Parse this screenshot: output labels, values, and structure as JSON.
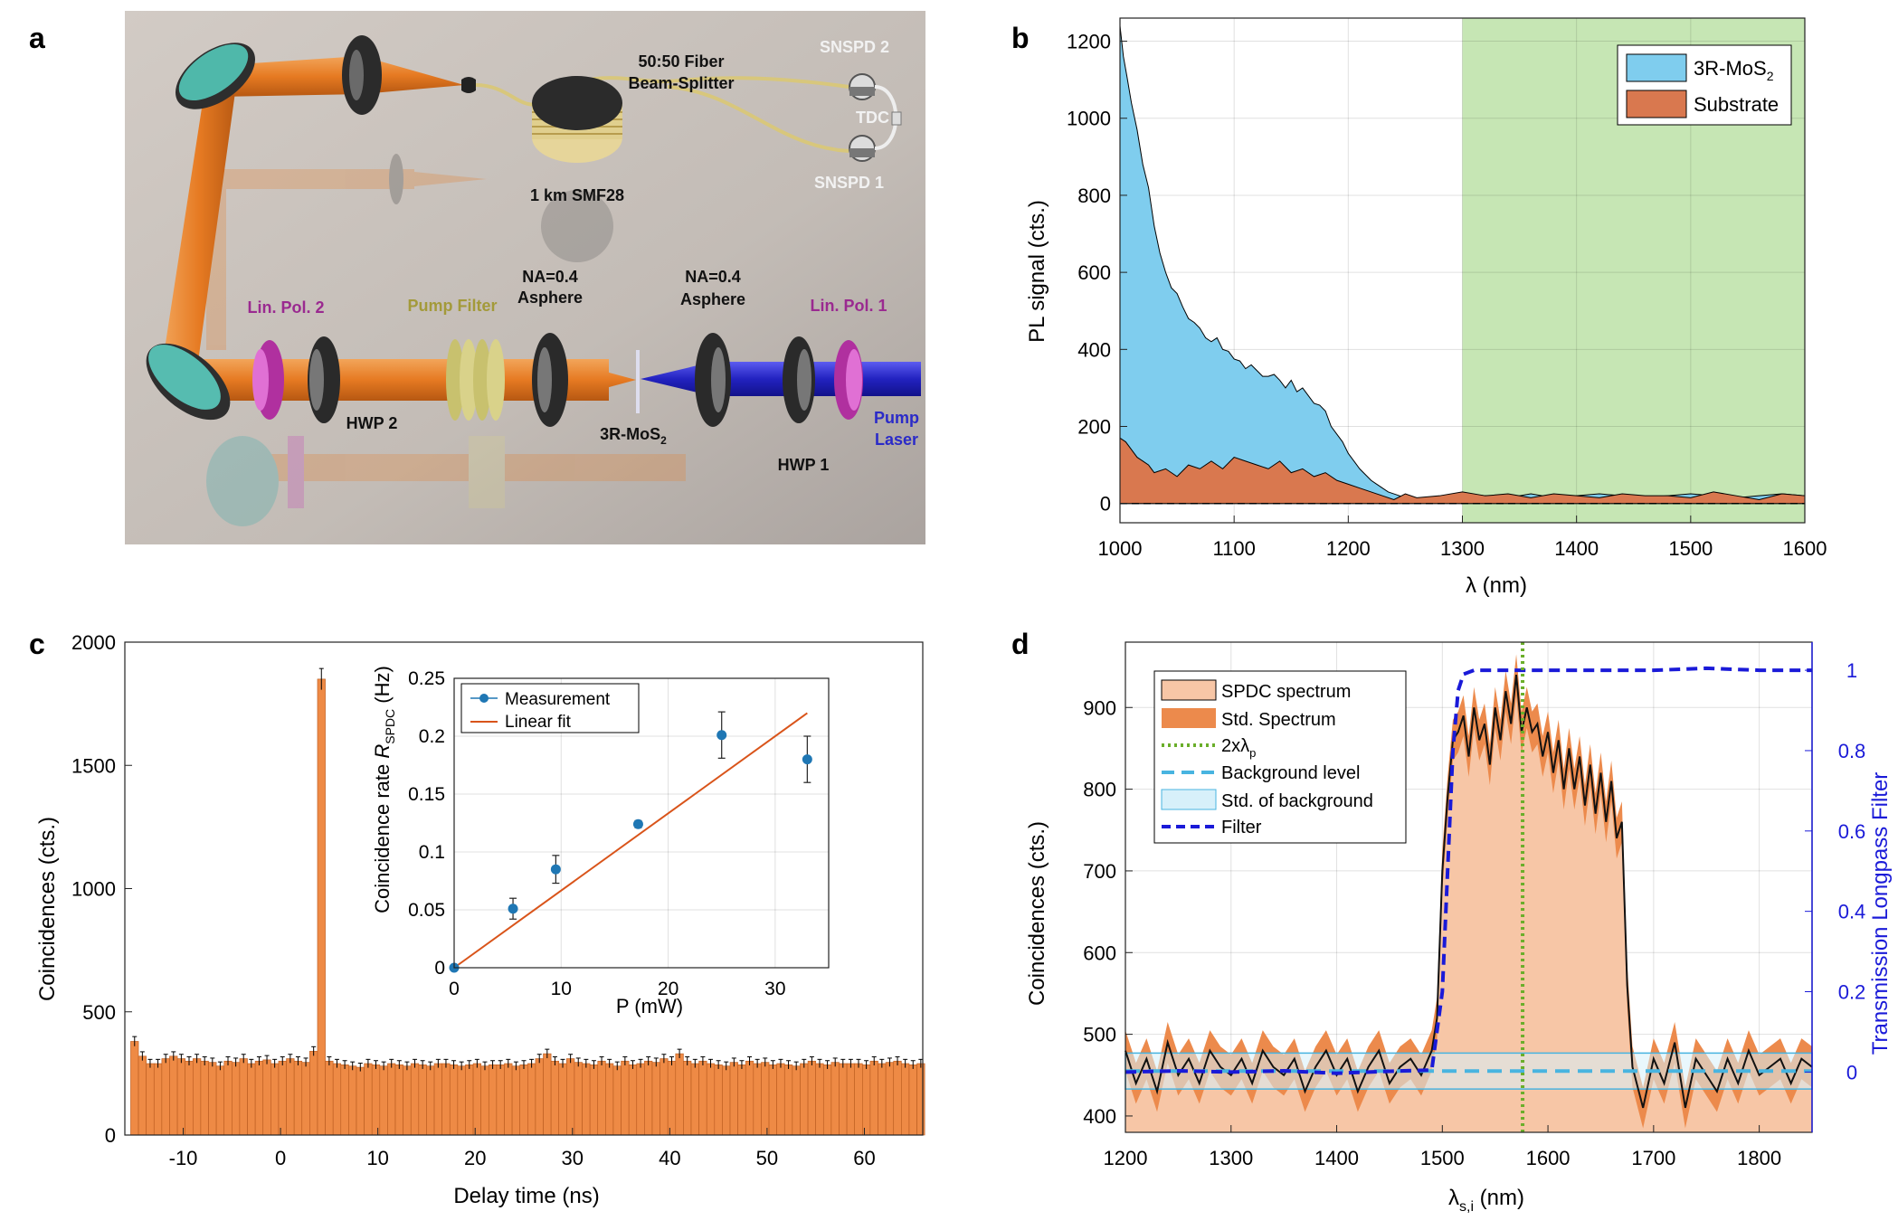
{
  "panel_labels": {
    "a": "a",
    "b": "b",
    "c": "c",
    "d": "d"
  },
  "setup": {
    "labels": {
      "snspd2": "SNSPD 2",
      "fiber_bs_1": "50:50 Fiber",
      "fiber_bs_2": "Beam-Splitter",
      "tdc": "TDC",
      "snspd1": "SNSPD 1",
      "smf": "1 km SMF28",
      "na_left_1": "NA=0.4",
      "na_left_2": "Asphere",
      "na_right_1": "NA=0.4",
      "na_right_2": "Asphere",
      "linpol2": "Lin. Pol. 2",
      "pumpfilter": "Pump Filter",
      "linpol1": "Lin. Pol. 1",
      "hwp2": "HWP 2",
      "sample": "3R-MoS",
      "sample_sub": "2",
      "hwp1": "HWP 1",
      "pump_laser_1": "Pump",
      "pump_laser_2": "Laser"
    },
    "colors": {
      "beam_orange": "#e87b2a",
      "beam_blue": "#2c2cc8",
      "lin_pol": "#c63fb8",
      "pump_filter": "#d9d28a",
      "fiber": "#d8c77c",
      "bg": "#c9c1bb"
    }
  },
  "chart_data": [
    {
      "id": "b",
      "type": "area",
      "xlabel": "λ (nm)",
      "ylabel": "PL signal (cts.)",
      "xlim": [
        1000,
        1600
      ],
      "ylim": [
        -50,
        1260
      ],
      "xticks": [
        1000,
        1100,
        1200,
        1300,
        1400,
        1500,
        1600
      ],
      "yticks": [
        0,
        200,
        400,
        600,
        800,
        1000,
        1200
      ],
      "shaded_region": [
        1300,
        1600
      ],
      "shaded_color": "#c6e6b4",
      "zero_line": true,
      "legend": [
        {
          "label": "3R-MoS",
          "sub": "2",
          "color": "#7fcdee"
        },
        {
          "label": "Substrate",
          "color": "#d9784f"
        }
      ],
      "series": [
        {
          "name": "3R-MoS2",
          "color": "#7fcdee",
          "x": [
            1000,
            1003,
            1006,
            1010,
            1015,
            1020,
            1025,
            1030,
            1035,
            1040,
            1045,
            1050,
            1055,
            1060,
            1065,
            1070,
            1075,
            1080,
            1085,
            1090,
            1095,
            1100,
            1105,
            1110,
            1115,
            1120,
            1125,
            1130,
            1135,
            1140,
            1145,
            1150,
            1155,
            1160,
            1165,
            1170,
            1175,
            1180,
            1185,
            1190,
            1195,
            1200,
            1205,
            1210,
            1215,
            1220,
            1225,
            1230,
            1235,
            1240,
            1245,
            1250,
            1260,
            1270,
            1280,
            1290,
            1300,
            1320,
            1340,
            1360,
            1380,
            1400,
            1420,
            1440,
            1460,
            1480,
            1500,
            1520,
            1540,
            1560,
            1580,
            1600
          ],
          "y": [
            1240,
            1160,
            1110,
            1040,
            970,
            880,
            820,
            720,
            650,
            600,
            560,
            545,
            510,
            480,
            470,
            455,
            430,
            420,
            430,
            400,
            395,
            375,
            370,
            350,
            360,
            345,
            330,
            330,
            335,
            320,
            300,
            320,
            290,
            300,
            280,
            260,
            255,
            240,
            200,
            180,
            160,
            130,
            110,
            90,
            75,
            60,
            50,
            40,
            30,
            25,
            20,
            15,
            10,
            15,
            10,
            20,
            25,
            20,
            15,
            25,
            15,
            20,
            25,
            20,
            15,
            20,
            25,
            20,
            15,
            20,
            25,
            20
          ]
        },
        {
          "name": "Substrate",
          "color": "#d9784f",
          "x": [
            1000,
            1005,
            1010,
            1015,
            1020,
            1025,
            1030,
            1040,
            1050,
            1060,
            1070,
            1080,
            1090,
            1100,
            1110,
            1120,
            1130,
            1140,
            1150,
            1160,
            1170,
            1180,
            1190,
            1200,
            1210,
            1220,
            1230,
            1240,
            1250,
            1260,
            1280,
            1300,
            1320,
            1340,
            1360,
            1380,
            1400,
            1420,
            1440,
            1460,
            1480,
            1500,
            1520,
            1540,
            1560,
            1580,
            1600
          ],
          "y": [
            170,
            160,
            140,
            120,
            110,
            100,
            80,
            90,
            70,
            100,
            90,
            110,
            90,
            120,
            110,
            100,
            90,
            110,
            80,
            90,
            70,
            80,
            60,
            50,
            40,
            30,
            20,
            10,
            25,
            15,
            20,
            30,
            20,
            25,
            15,
            25,
            20,
            15,
            25,
            20,
            20,
            15,
            30,
            20,
            10,
            25,
            20
          ]
        }
      ]
    },
    {
      "id": "c",
      "type": "bar",
      "xlabel": "Delay time (ns)",
      "ylabel": "Coincidences (cts.)",
      "xlim": [
        -16,
        66
      ],
      "ylim": [
        0,
        2000
      ],
      "xticks": [
        -10,
        0,
        10,
        20,
        30,
        40,
        50,
        60
      ],
      "yticks": [
        0,
        500,
        1000,
        1500,
        2000
      ],
      "bar_color": "#ee8a45",
      "bin_start": -15,
      "bin_width": 0.8,
      "values": [
        380,
        320,
        290,
        290,
        310,
        320,
        310,
        300,
        310,
        300,
        295,
        280,
        300,
        295,
        310,
        290,
        300,
        305,
        290,
        300,
        310,
        300,
        295,
        340,
        1850,
        300,
        290,
        285,
        280,
        275,
        290,
        285,
        280,
        290,
        285,
        280,
        290,
        285,
        280,
        290,
        290,
        285,
        280,
        285,
        290,
        280,
        285,
        285,
        290,
        280,
        285,
        290,
        310,
        330,
        300,
        290,
        310,
        295,
        290,
        285,
        300,
        290,
        280,
        300,
        285,
        290,
        300,
        295,
        310,
        300,
        330,
        300,
        290,
        300,
        290,
        285,
        280,
        295,
        285,
        300,
        290,
        295,
        285,
        290,
        285,
        280,
        290,
        300,
        290,
        285,
        295,
        290,
        290,
        290,
        285,
        300,
        290,
        295,
        300,
        290,
        285,
        290
      ],
      "inset": {
        "type": "scatter",
        "xlabel": "P (mW)",
        "ylabel_1": "Coincidence rate ",
        "ylabel_2": "R",
        "ylabel_sub": "SPDC",
        "ylabel_3": " (Hz)",
        "xlim": [
          0,
          35
        ],
        "ylim": [
          0,
          0.25
        ],
        "xticks": [
          0,
          10,
          20,
          30
        ],
        "yticks": [
          0,
          0.05,
          0.1,
          0.15,
          0.2,
          0.25
        ],
        "ytick_labels": [
          "0",
          "0.05",
          "0.1",
          "0.15",
          "0.2",
          "0.25"
        ],
        "legend": [
          {
            "label": "Measurement",
            "color": "#1f77b4"
          },
          {
            "label": "Linear fit",
            "color": "#d9541a"
          }
        ],
        "points": [
          {
            "x": 0,
            "y": 0,
            "err": 0.002
          },
          {
            "x": 5.5,
            "y": 0.051,
            "err": 0.009
          },
          {
            "x": 9.5,
            "y": 0.085,
            "err": 0.012
          },
          {
            "x": 17.2,
            "y": 0.124,
            "err": 0.003
          },
          {
            "x": 25,
            "y": 0.201,
            "err": 0.02
          },
          {
            "x": 33,
            "y": 0.18,
            "err": 0.02
          }
        ],
        "fit": {
          "x": [
            0,
            33
          ],
          "y": [
            0,
            0.22
          ]
        }
      }
    },
    {
      "id": "d",
      "type": "line",
      "xlabel": "λ",
      "xlabel_sub": "s,i",
      "xlabel_unit": " (nm)",
      "ylabel": "Coincidences (cts.)",
      "ylabel_right": "Transmission Longpass Filter",
      "xlim": [
        1200,
        1850
      ],
      "ylim": [
        380,
        980
      ],
      "ylim_right": [
        -0.15,
        1.07
      ],
      "xticks": [
        1200,
        1300,
        1400,
        1500,
        1600,
        1700,
        1800
      ],
      "yticks": [
        400,
        500,
        600,
        700,
        800,
        900
      ],
      "yticks_right": [
        0,
        0.2,
        0.4,
        0.6,
        0.8,
        1
      ],
      "pump_double": 1576,
      "background_level": 455,
      "background_std": 22,
      "legend": [
        {
          "label": "SPDC spectrum",
          "kind": "patch",
          "color": "#f7c6a6"
        },
        {
          "label": "Std. Spectrum",
          "kind": "patch",
          "color": "#ec8a4c"
        },
        {
          "label": "2xλ",
          "sub": "p",
          "kind": "dotted",
          "color": "#6aae2a"
        },
        {
          "label": "Background level",
          "kind": "dashed",
          "color": "#48b4e0"
        },
        {
          "label": "Std. of background",
          "kind": "patch",
          "color": "#d7f0fa"
        },
        {
          "label": "Filter",
          "kind": "dashed",
          "color": "#1a1ad8"
        }
      ],
      "spectrum": {
        "x": [
          1200,
          1210,
          1220,
          1230,
          1240,
          1250,
          1260,
          1270,
          1280,
          1290,
          1300,
          1310,
          1320,
          1330,
          1340,
          1350,
          1360,
          1370,
          1380,
          1390,
          1400,
          1410,
          1420,
          1430,
          1440,
          1450,
          1460,
          1470,
          1480,
          1490,
          1495,
          1500,
          1505,
          1510,
          1515,
          1520,
          1525,
          1530,
          1535,
          1540,
          1545,
          1550,
          1555,
          1560,
          1565,
          1570,
          1575,
          1580,
          1585,
          1590,
          1595,
          1600,
          1605,
          1610,
          1615,
          1620,
          1625,
          1630,
          1635,
          1640,
          1645,
          1650,
          1655,
          1660,
          1665,
          1670,
          1675,
          1680,
          1690,
          1700,
          1710,
          1720,
          1730,
          1740,
          1750,
          1760,
          1770,
          1780,
          1790,
          1800,
          1810,
          1820,
          1830,
          1840,
          1850
        ],
        "y": [
          480,
          440,
          470,
          430,
          490,
          450,
          470,
          440,
          480,
          460,
          450,
          470,
          440,
          480,
          460,
          450,
          470,
          430,
          460,
          480,
          450,
          470,
          430,
          460,
          480,
          440,
          460,
          470,
          450,
          480,
          520,
          700,
          790,
          860,
          870,
          890,
          840,
          900,
          860,
          880,
          830,
          900,
          860,
          920,
          880,
          940,
          870,
          900,
          870,
          880,
          840,
          870,
          820,
          860,
          800,
          850,
          800,
          840,
          780,
          830,
          770,
          820,
          760,
          810,
          740,
          760,
          560,
          460,
          410,
          470,
          440,
          490,
          410,
          470,
          450,
          430,
          470,
          440,
          480,
          450,
          460,
          470,
          440,
          470,
          460
        ],
        "std": 25
      },
      "filter": {
        "x": [
          1200,
          1250,
          1300,
          1350,
          1400,
          1450,
          1490,
          1500,
          1505,
          1510,
          1515,
          1520,
          1530,
          1550,
          1600,
          1650,
          1700,
          1750,
          1800,
          1850
        ],
        "y": [
          0,
          0.003,
          0,
          0.003,
          -0.003,
          0.002,
          0.005,
          0.2,
          0.5,
          0.8,
          0.95,
          0.99,
          1.0,
          1.0,
          1.0,
          1.0,
          1.0,
          1.005,
          1.0,
          1.0
        ]
      }
    }
  ]
}
